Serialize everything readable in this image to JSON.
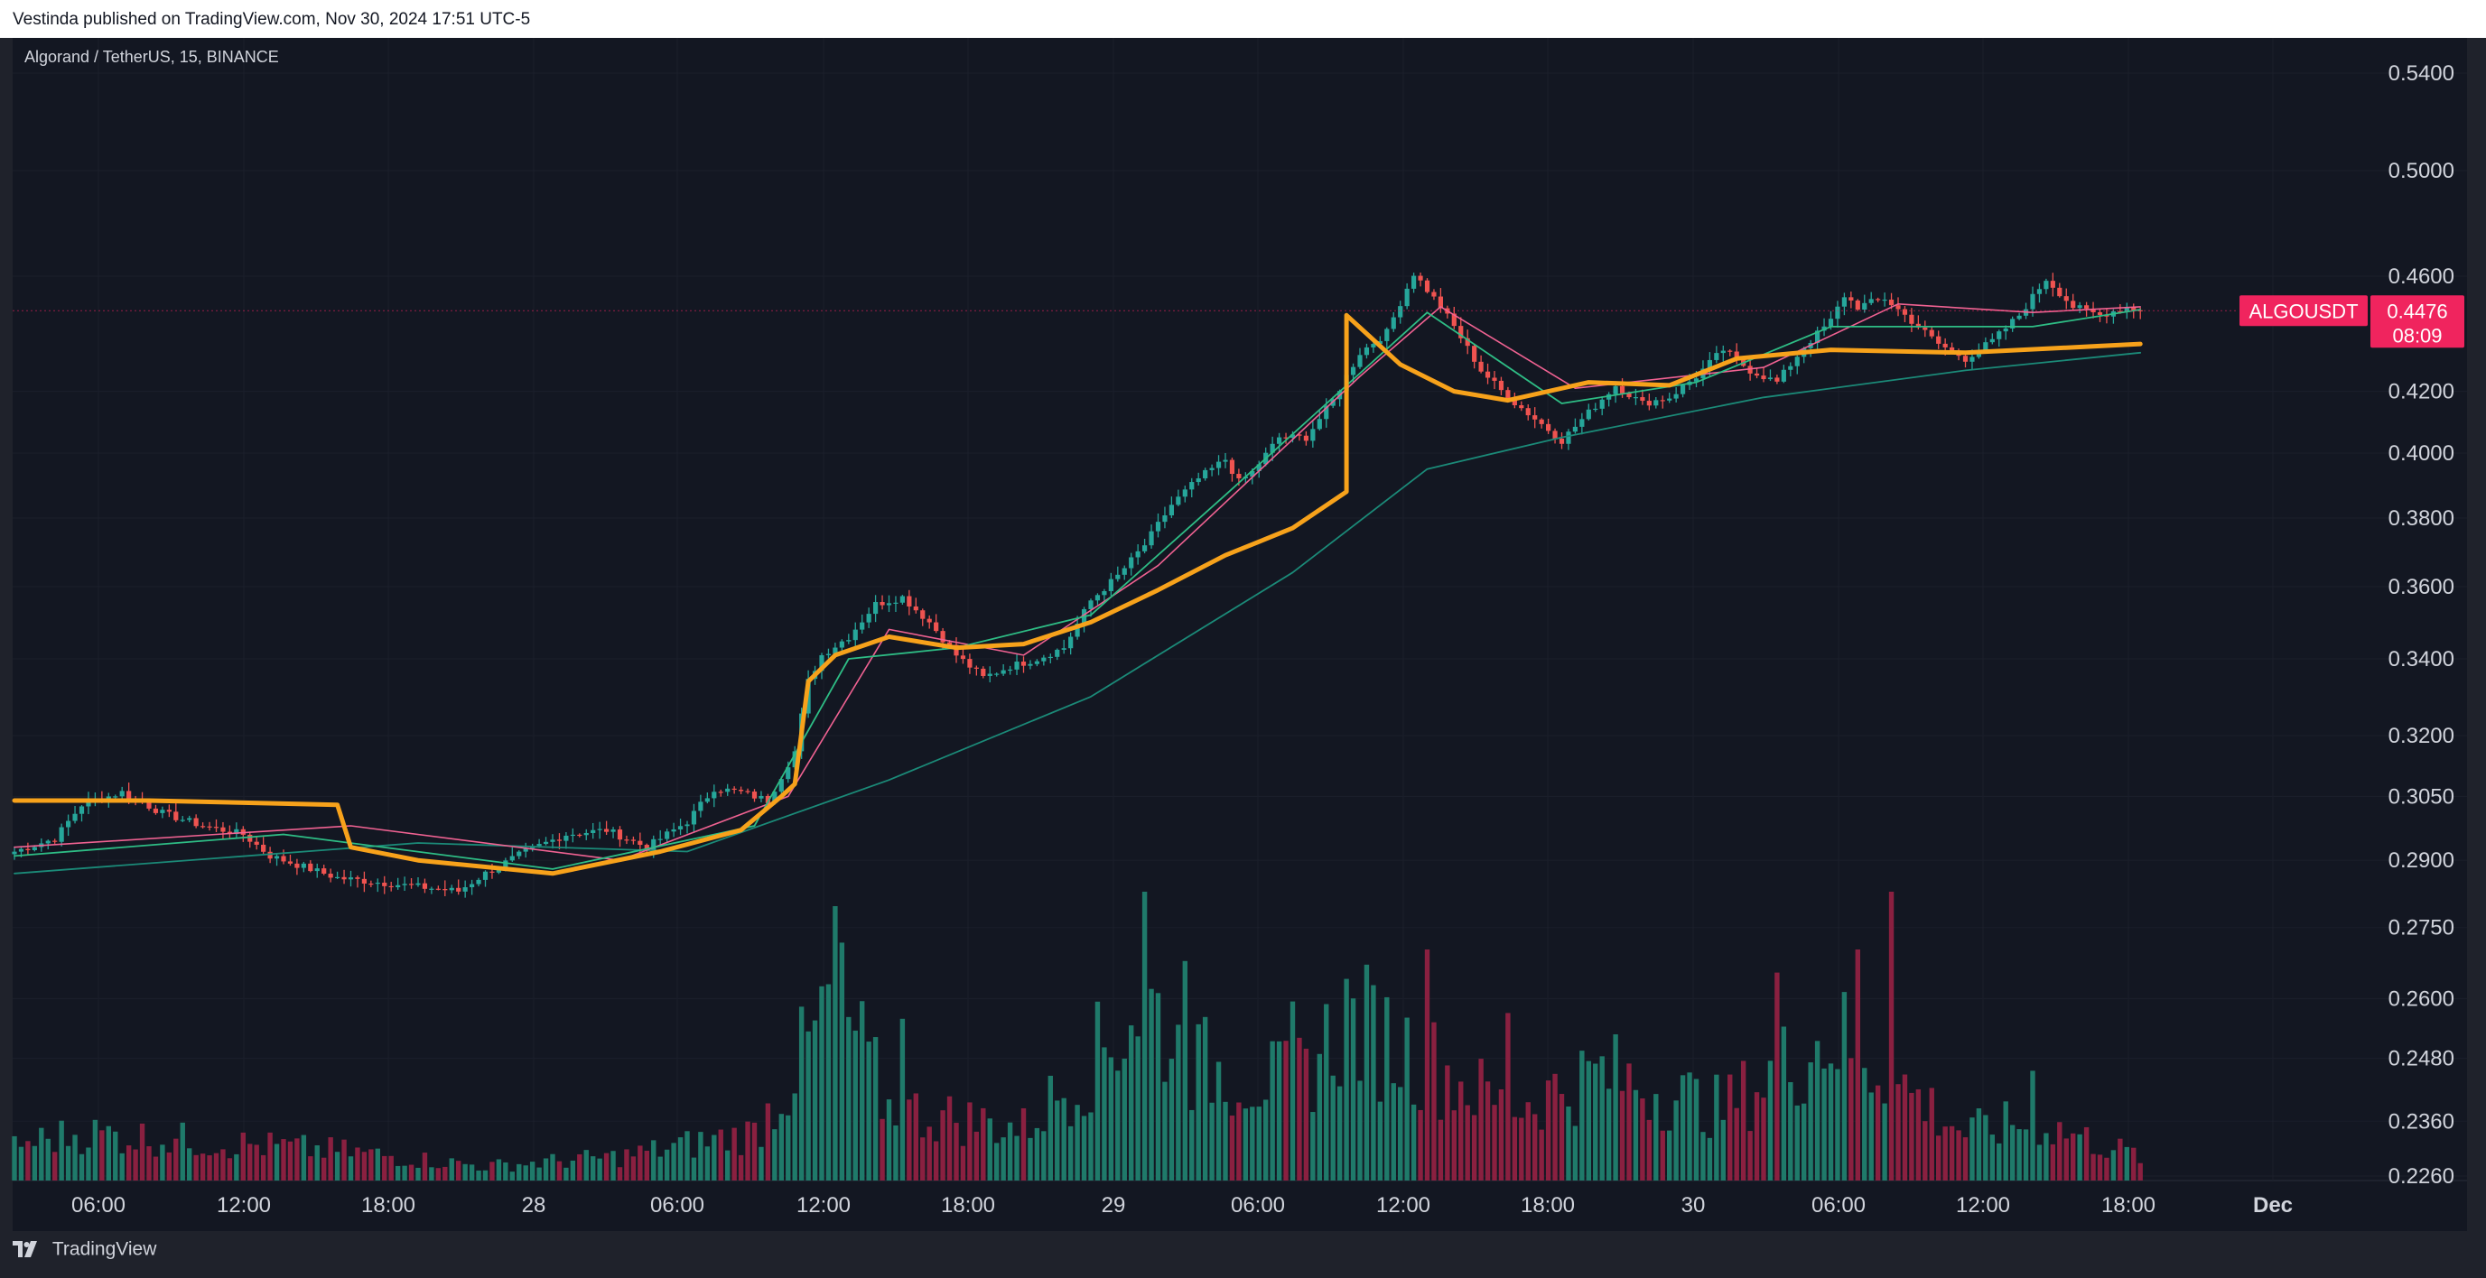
{
  "header": {
    "published": "Vestinda published on TradingView.com, Nov 30, 2024 17:51 UTC-5"
  },
  "symbol": {
    "description": "Algorand / TetherUS, 15, BINANCE",
    "ticker": "ALGOUSDT",
    "last_price": "0.4476",
    "countdown": "08:09"
  },
  "footer": {
    "brand": "TradingView"
  },
  "colors": {
    "background": "#131722",
    "up": "#26a69a",
    "down": "#ef5350",
    "volume_up": "#1f7a6a",
    "volume_down": "#8a2040",
    "vwap": "#f7a21b",
    "ema_fast": "#2ebd85",
    "ema_mid": "#f06292",
    "ema_slow": "#1b8a78",
    "badge": "#f0245e"
  },
  "chart_data": {
    "type": "candlestick",
    "interval": "15",
    "price_scale": "log",
    "ylim": [
      0.226,
      0.55
    ],
    "y_ticks": [
      "0.5400",
      "0.5000",
      "0.4600",
      "0.4200",
      "0.4000",
      "0.3800",
      "0.3600",
      "0.3400",
      "0.3200",
      "0.3050",
      "0.2900",
      "0.2750",
      "0.2600",
      "0.2480",
      "0.2360",
      "0.2260"
    ],
    "x_ticks": [
      "06:00",
      "12:00",
      "18:00",
      "28",
      "06:00",
      "12:00",
      "18:00",
      "29",
      "06:00",
      "12:00",
      "18:00",
      "30",
      "06:00",
      "12:00",
      "18:00",
      "Dec"
    ],
    "close_anchors": [
      [
        0,
        0.292
      ],
      [
        6,
        0.295
      ],
      [
        10,
        0.303
      ],
      [
        16,
        0.306
      ],
      [
        22,
        0.301
      ],
      [
        28,
        0.298
      ],
      [
        34,
        0.296
      ],
      [
        38,
        0.291
      ],
      [
        42,
        0.289
      ],
      [
        48,
        0.286
      ],
      [
        54,
        0.285
      ],
      [
        60,
        0.284
      ],
      [
        66,
        0.283
      ],
      [
        70,
        0.287
      ],
      [
        76,
        0.292
      ],
      [
        82,
        0.296
      ],
      [
        88,
        0.297
      ],
      [
        94,
        0.293
      ],
      [
        100,
        0.299
      ],
      [
        104,
        0.307
      ],
      [
        108,
        0.306
      ],
      [
        112,
        0.304
      ],
      [
        116,
        0.316
      ],
      [
        118,
        0.334
      ],
      [
        120,
        0.341
      ],
      [
        124,
        0.346
      ],
      [
        128,
        0.355
      ],
      [
        132,
        0.357
      ],
      [
        136,
        0.35
      ],
      [
        140,
        0.341
      ],
      [
        144,
        0.335
      ],
      [
        148,
        0.338
      ],
      [
        152,
        0.34
      ],
      [
        156,
        0.343
      ],
      [
        160,
        0.356
      ],
      [
        164,
        0.363
      ],
      [
        168,
        0.372
      ],
      [
        172,
        0.384
      ],
      [
        176,
        0.392
      ],
      [
        180,
        0.398
      ],
      [
        182,
        0.391
      ],
      [
        184,
        0.394
      ],
      [
        188,
        0.405
      ],
      [
        192,
        0.405
      ],
      [
        196,
        0.417
      ],
      [
        200,
        0.433
      ],
      [
        204,
        0.44
      ],
      [
        208,
        0.461
      ],
      [
        212,
        0.449
      ],
      [
        214,
        0.442
      ],
      [
        218,
        0.427
      ],
      [
        222,
        0.418
      ],
      [
        226,
        0.411
      ],
      [
        230,
        0.404
      ],
      [
        234,
        0.413
      ],
      [
        238,
        0.422
      ],
      [
        242,
        0.416
      ],
      [
        246,
        0.418
      ],
      [
        250,
        0.425
      ],
      [
        254,
        0.434
      ],
      [
        258,
        0.427
      ],
      [
        262,
        0.423
      ],
      [
        266,
        0.435
      ],
      [
        270,
        0.444
      ],
      [
        272,
        0.453
      ],
      [
        274,
        0.449
      ],
      [
        278,
        0.452
      ],
      [
        282,
        0.444
      ],
      [
        286,
        0.436
      ],
      [
        290,
        0.431
      ],
      [
        294,
        0.437
      ],
      [
        298,
        0.446
      ],
      [
        302,
        0.459
      ],
      [
        306,
        0.449
      ],
      [
        310,
        0.446
      ],
      [
        314,
        0.449
      ],
      [
        316,
        0.4476
      ]
    ],
    "vwap_anchors": [
      [
        0,
        0.304
      ],
      [
        20,
        0.304
      ],
      [
        48,
        0.303
      ],
      [
        50,
        0.293
      ],
      [
        60,
        0.29
      ],
      [
        80,
        0.287
      ],
      [
        96,
        0.292
      ],
      [
        108,
        0.297
      ],
      [
        114,
        0.305
      ],
      [
        116,
        0.308
      ],
      [
        118,
        0.334
      ],
      [
        122,
        0.341
      ],
      [
        130,
        0.346
      ],
      [
        140,
        0.343
      ],
      [
        150,
        0.344
      ],
      [
        160,
        0.35
      ],
      [
        170,
        0.359
      ],
      [
        180,
        0.369
      ],
      [
        190,
        0.377
      ],
      [
        198,
        0.388
      ],
      [
        198,
        0.446
      ],
      [
        206,
        0.429
      ],
      [
        214,
        0.42
      ],
      [
        222,
        0.417
      ],
      [
        234,
        0.423
      ],
      [
        246,
        0.422
      ],
      [
        256,
        0.431
      ],
      [
        270,
        0.434
      ],
      [
        290,
        0.433
      ],
      [
        316,
        0.436
      ]
    ],
    "ema_fast_anchors": [
      [
        0,
        0.291
      ],
      [
        40,
        0.296
      ],
      [
        80,
        0.288
      ],
      [
        110,
        0.298
      ],
      [
        124,
        0.34
      ],
      [
        140,
        0.343
      ],
      [
        160,
        0.352
      ],
      [
        180,
        0.387
      ],
      [
        210,
        0.447
      ],
      [
        230,
        0.416
      ],
      [
        250,
        0.423
      ],
      [
        270,
        0.442
      ],
      [
        300,
        0.442
      ],
      [
        316,
        0.448
      ]
    ],
    "ema_mid_anchors": [
      [
        0,
        0.293
      ],
      [
        50,
        0.298
      ],
      [
        90,
        0.29
      ],
      [
        115,
        0.305
      ],
      [
        130,
        0.348
      ],
      [
        150,
        0.341
      ],
      [
        170,
        0.366
      ],
      [
        200,
        0.425
      ],
      [
        212,
        0.449
      ],
      [
        232,
        0.421
      ],
      [
        260,
        0.428
      ],
      [
        280,
        0.45
      ],
      [
        300,
        0.447
      ],
      [
        316,
        0.449
      ]
    ],
    "ema_slow_anchors": [
      [
        0,
        0.287
      ],
      [
        60,
        0.294
      ],
      [
        100,
        0.292
      ],
      [
        130,
        0.309
      ],
      [
        160,
        0.33
      ],
      [
        190,
        0.364
      ],
      [
        210,
        0.395
      ],
      [
        230,
        0.405
      ],
      [
        260,
        0.418
      ],
      [
        290,
        0.427
      ],
      [
        316,
        0.433
      ]
    ],
    "volume_anchors": [
      [
        0,
        0.15
      ],
      [
        10,
        0.2
      ],
      [
        30,
        0.16
      ],
      [
        50,
        0.12
      ],
      [
        70,
        0.06
      ],
      [
        90,
        0.1
      ],
      [
        110,
        0.2
      ],
      [
        118,
        0.55
      ],
      [
        122,
        0.78
      ],
      [
        130,
        0.3
      ],
      [
        150,
        0.22
      ],
      [
        162,
        0.55
      ],
      [
        168,
        0.78
      ],
      [
        174,
        0.5
      ],
      [
        190,
        0.4
      ],
      [
        198,
        0.68
      ],
      [
        210,
        0.5
      ],
      [
        222,
        0.3
      ],
      [
        236,
        0.45
      ],
      [
        254,
        0.3
      ],
      [
        270,
        0.62
      ],
      [
        278,
        0.45
      ],
      [
        290,
        0.2
      ],
      [
        300,
        0.25
      ],
      [
        316,
        0.1
      ]
    ],
    "volume_spikes": [
      [
        122,
        0.95
      ],
      [
        132,
        0.56
      ],
      [
        168,
        1.0
      ],
      [
        174,
        0.76
      ],
      [
        190,
        0.62
      ],
      [
        210,
        0.8
      ],
      [
        222,
        0.58
      ],
      [
        262,
        0.72
      ],
      [
        274,
        0.8
      ],
      [
        279,
        1.0
      ],
      [
        300,
        0.38
      ]
    ]
  }
}
